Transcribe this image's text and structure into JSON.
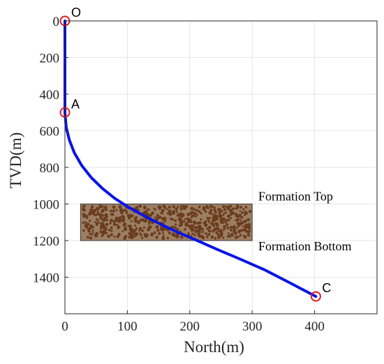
{
  "chart_data": {
    "type": "line",
    "title": "",
    "xlabel": "North(m)",
    "ylabel": "TVD(m)",
    "xlim": [
      0,
      500
    ],
    "ylim": [
      0,
      1600
    ],
    "y_reversed": true,
    "grid": true,
    "x_ticks": [
      0,
      100,
      200,
      300,
      400
    ],
    "y_ticks": [
      0,
      200,
      400,
      600,
      800,
      1000,
      1200,
      1400
    ],
    "colors": {
      "trajectory": "#0a14e6",
      "markers": "#e31a1c",
      "formation_fill": "#9b7f63",
      "formation_dots": "#6b3c1e",
      "grid": "#e6e6e6"
    },
    "trajectory": {
      "x": [
        0,
        0,
        2,
        7,
        15,
        27,
        42,
        60,
        80,
        103,
        127,
        153,
        181,
        212,
        245,
        280,
        320,
        360,
        402
      ],
      "y": [
        0,
        500,
        580,
        650,
        720,
        790,
        855,
        915,
        970,
        1020,
        1065,
        1110,
        1155,
        1200,
        1250,
        1300,
        1360,
        1430,
        1505
      ]
    },
    "points": [
      {
        "label": "O",
        "x": 0,
        "y": 0
      },
      {
        "label": "A",
        "x": 0,
        "y": 500
      },
      {
        "label": "C",
        "x": 402,
        "y": 1505
      }
    ],
    "formation": {
      "x": [
        25,
        300
      ],
      "y": [
        1000,
        1200
      ],
      "top_label": "Formation Top",
      "bottom_label": "Formation Bottom"
    }
  }
}
